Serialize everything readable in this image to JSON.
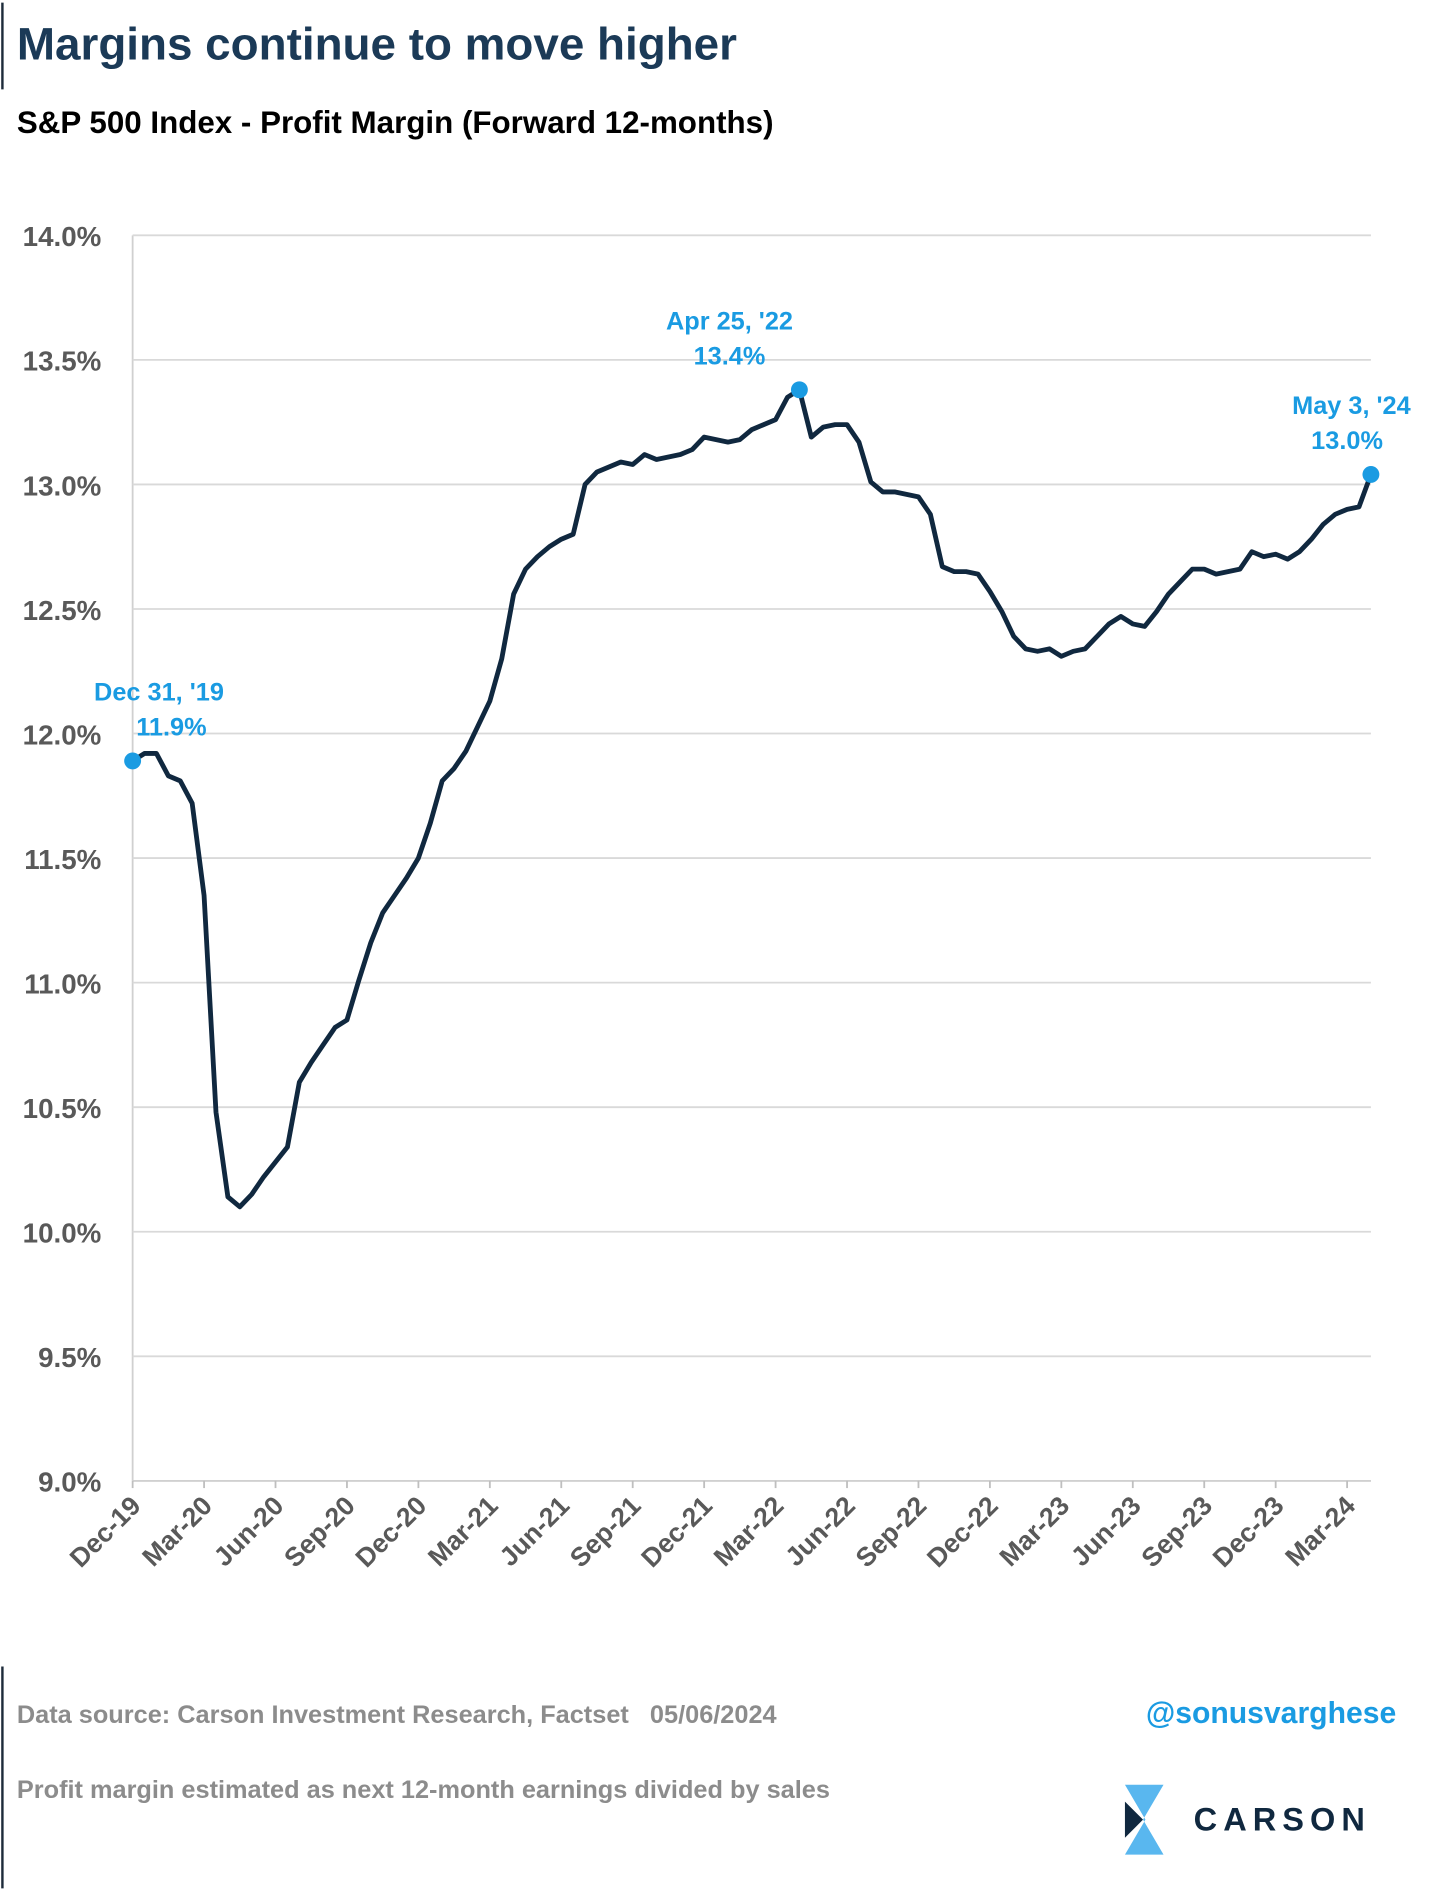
{
  "chart_data": {
    "type": "line",
    "title": "Margins continue to move higher",
    "subtitle": "S&P 500 Index - Profit Margin (Forward 12-months)",
    "categories": [
      "Dec-19",
      null,
      null,
      null,
      null,
      null,
      "Mar-20",
      null,
      null,
      null,
      null,
      null,
      "Jun-20",
      null,
      null,
      null,
      null,
      null,
      "Sep-20",
      null,
      null,
      null,
      null,
      null,
      "Dec-20",
      null,
      null,
      null,
      null,
      null,
      "Mar-21",
      null,
      null,
      null,
      null,
      null,
      "Jun-21",
      null,
      null,
      null,
      null,
      null,
      "Sep-21",
      null,
      null,
      null,
      null,
      null,
      "Dec-21",
      null,
      null,
      null,
      null,
      null,
      "Mar-22",
      null,
      null,
      null,
      null,
      null,
      "Jun-22",
      null,
      null,
      null,
      null,
      null,
      "Sep-22",
      null,
      null,
      null,
      null,
      null,
      "Dec-22",
      null,
      null,
      null,
      null,
      null,
      "Mar-23",
      null,
      null,
      null,
      null,
      null,
      "Jun-23",
      null,
      null,
      null,
      null,
      null,
      "Sep-23",
      null,
      null,
      null,
      null,
      null,
      "Dec-23",
      null,
      null,
      null,
      null,
      null,
      "Mar-24",
      null,
      null
    ],
    "values": [
      11.89,
      11.92,
      11.92,
      11.83,
      11.81,
      11.72,
      11.35,
      10.48,
      10.14,
      10.1,
      10.15,
      10.22,
      10.28,
      10.34,
      10.6,
      10.68,
      10.75,
      10.82,
      10.85,
      11.01,
      11.16,
      11.28,
      11.35,
      11.42,
      11.5,
      11.64,
      11.81,
      11.86,
      11.93,
      12.03,
      12.13,
      12.3,
      12.56,
      12.66,
      12.71,
      12.75,
      12.78,
      12.8,
      13.0,
      13.05,
      13.07,
      13.09,
      13.08,
      13.12,
      13.1,
      13.11,
      13.12,
      13.14,
      13.19,
      13.18,
      13.17,
      13.18,
      13.22,
      13.24,
      13.26,
      13.35,
      13.38,
      13.19,
      13.23,
      13.24,
      13.24,
      13.17,
      13.01,
      12.97,
      12.97,
      12.96,
      12.95,
      12.88,
      12.67,
      12.65,
      12.65,
      12.64,
      12.57,
      12.49,
      12.39,
      12.34,
      12.33,
      12.34,
      12.31,
      12.33,
      12.34,
      12.39,
      12.44,
      12.47,
      12.44,
      12.43,
      12.49,
      12.56,
      12.61,
      12.66,
      12.66,
      12.64,
      12.65,
      12.66,
      12.73,
      12.71,
      12.72,
      12.7,
      12.73,
      12.78,
      12.84,
      12.88,
      12.9,
      12.91,
      13.04
    ],
    "value_labels": [
      "11.9%",
      null,
      null,
      null,
      null,
      null,
      null,
      null,
      null,
      null,
      null,
      null,
      null,
      null,
      null,
      null,
      null,
      null,
      null,
      null,
      null,
      null,
      null,
      null,
      null,
      null,
      null,
      null,
      null,
      null,
      null,
      null,
      null,
      null,
      null,
      null,
      null,
      null,
      null,
      null,
      null,
      null,
      null,
      null,
      null,
      null,
      null,
      null,
      null,
      null,
      null,
      null,
      null,
      null,
      null,
      null,
      "13.4%",
      null,
      null,
      null,
      null,
      null,
      null,
      null,
      null,
      null,
      null,
      null,
      null,
      null,
      null,
      null,
      null,
      null,
      null,
      null,
      null,
      null,
      null,
      null,
      null,
      null,
      null,
      null,
      null,
      null,
      null,
      null,
      null,
      null,
      null,
      null,
      null,
      null,
      null,
      null,
      null,
      null,
      null,
      null,
      null,
      null,
      null,
      null,
      "13.0%"
    ],
    "date_labels": [
      "Dec 31, '19",
      null,
      null,
      null,
      null,
      null,
      null,
      null,
      null,
      null,
      null,
      null,
      null,
      null,
      null,
      null,
      null,
      null,
      null,
      null,
      null,
      null,
      null,
      null,
      null,
      null,
      null,
      null,
      null,
      null,
      null,
      null,
      null,
      null,
      null,
      null,
      null,
      null,
      null,
      null,
      null,
      null,
      null,
      null,
      null,
      null,
      null,
      null,
      null,
      null,
      null,
      null,
      null,
      null,
      null,
      null,
      "Apr 25, '22",
      null,
      null,
      null,
      null,
      null,
      null,
      null,
      null,
      null,
      null,
      null,
      null,
      null,
      null,
      null,
      null,
      null,
      null,
      null,
      null,
      null,
      null,
      null,
      null,
      null,
      null,
      null,
      null,
      null,
      null,
      null,
      null,
      null,
      null,
      null,
      null,
      null,
      null,
      null,
      null,
      null,
      null,
      null,
      null,
      null,
      null,
      null,
      "May 3, '24"
    ],
    "color": "#10283f",
    "marker_color": "#1a9be2",
    "ylim": [
      9,
      14
    ],
    "yticks": [
      {
        "value": 9,
        "label": "9.0%"
      },
      {
        "value": 9.5,
        "label": "9.5%"
      },
      {
        "value": 10,
        "label": "10.0%"
      },
      {
        "value": 10.5,
        "label": "10.5%"
      },
      {
        "value": 11,
        "label": "11.0%"
      },
      {
        "value": 11.5,
        "label": "11.5%"
      },
      {
        "value": 12,
        "label": "12.0%"
      },
      {
        "value": 12.5,
        "label": "12.5%"
      },
      {
        "value": 13,
        "label": "13.0%"
      },
      {
        "value": 13.5,
        "label": "13.5%"
      },
      {
        "value": 14,
        "label": "14.0%"
      }
    ],
    "grid": true
  },
  "footer": {
    "source": "Data source: Carson Investment Research, Factset   05/06/2024",
    "note": "Profit margin estimated as next 12-month earnings divided by sales",
    "handle": "@sonusvarghese",
    "logo": "CARSON"
  }
}
